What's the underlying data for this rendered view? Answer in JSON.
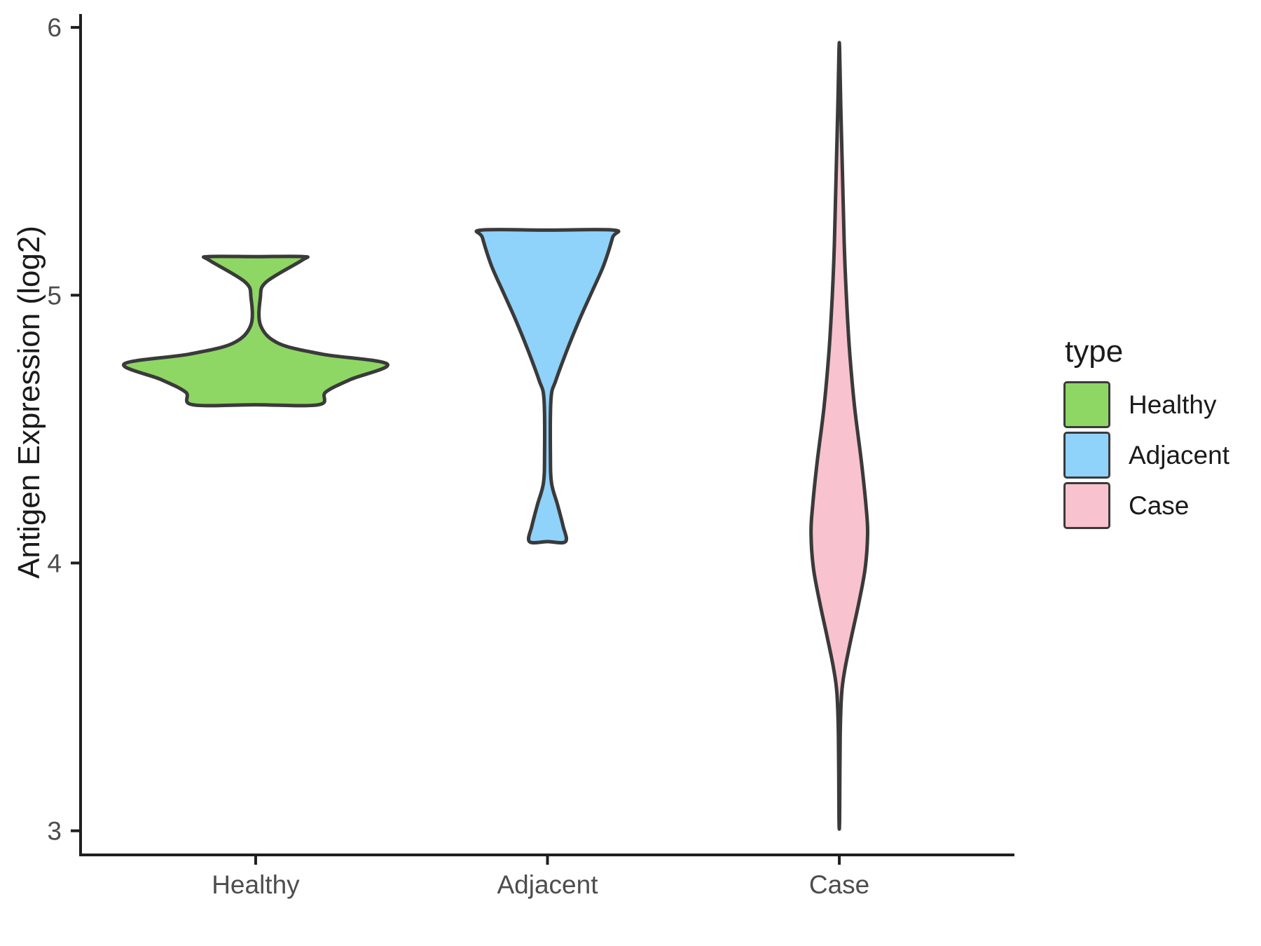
{
  "chart_data": {
    "type": "violin",
    "title": "",
    "xlabel": "",
    "ylabel": "Antigen Expression (log2)",
    "categories": [
      "Healthy",
      "Adjacent",
      "Case"
    ],
    "yticks": [
      3,
      4,
      5,
      6
    ],
    "ylim": [
      2.91,
      6.05
    ],
    "grid": "off",
    "legend_position": "right",
    "series": [
      {
        "name": "Healthy",
        "color": "#8ed764",
        "flat_top": true,
        "flat_bottom": true,
        "range": [
          4.59,
          5.14
        ],
        "peak_value": 4.74,
        "profile": [
          [
            5.144,
            0.163
          ],
          [
            5.13,
            0.158
          ],
          [
            5.049,
            0.036
          ],
          [
            4.99,
            0.016
          ],
          [
            4.887,
            0.017
          ],
          [
            4.82,
            0.079
          ],
          [
            4.78,
            0.228
          ],
          [
            4.743,
            0.451
          ],
          [
            4.685,
            0.324
          ],
          [
            4.638,
            0.24
          ],
          [
            4.591,
            0.216
          ]
        ]
      },
      {
        "name": "Adjacent",
        "color": "#8fd2fa",
        "flat_top": true,
        "flat_bottom": true,
        "range": [
          4.08,
          5.24
        ],
        "peak_value": 5.24,
        "profile": [
          [
            5.243,
            0.227
          ],
          [
            5.215,
            0.223
          ],
          [
            5.11,
            0.192
          ],
          [
            5.005,
            0.149
          ],
          [
            4.9,
            0.106
          ],
          [
            4.795,
            0.067
          ],
          [
            4.683,
            0.029
          ],
          [
            4.612,
            0.012
          ],
          [
            4.402,
            0.01
          ],
          [
            4.298,
            0.014
          ],
          [
            4.219,
            0.034
          ],
          [
            4.14,
            0.053
          ],
          [
            4.08,
            0.062
          ]
        ]
      },
      {
        "name": "Case",
        "color": "#f8c2ce",
        "flat_top": false,
        "flat_bottom": false,
        "range": [
          3.05,
          5.92
        ],
        "peak_value": 4.11,
        "profile": [
          [
            5.917,
            0.001
          ],
          [
            5.71,
            0.005
          ],
          [
            5.45,
            0.011
          ],
          [
            5.19,
            0.017
          ],
          [
            5.0,
            0.024
          ],
          [
            4.795,
            0.035
          ],
          [
            4.586,
            0.052
          ],
          [
            4.376,
            0.076
          ],
          [
            4.219,
            0.091
          ],
          [
            4.114,
            0.097
          ],
          [
            3.983,
            0.089
          ],
          [
            3.852,
            0.067
          ],
          [
            3.721,
            0.041
          ],
          [
            3.603,
            0.019
          ],
          [
            3.512,
            0.008
          ],
          [
            3.354,
            0.003
          ],
          [
            3.045,
            0.001
          ]
        ]
      }
    ]
  },
  "legend": {
    "title": "type",
    "entries": [
      {
        "label": "Healthy"
      },
      {
        "label": "Adjacent"
      },
      {
        "label": "Case"
      }
    ]
  },
  "colors": {
    "outline": "#3a3a3a",
    "axis": "#1f1f1f",
    "tick_label": "#4d4d4d",
    "text": "#1a1a1a",
    "background": "#ffffff"
  }
}
